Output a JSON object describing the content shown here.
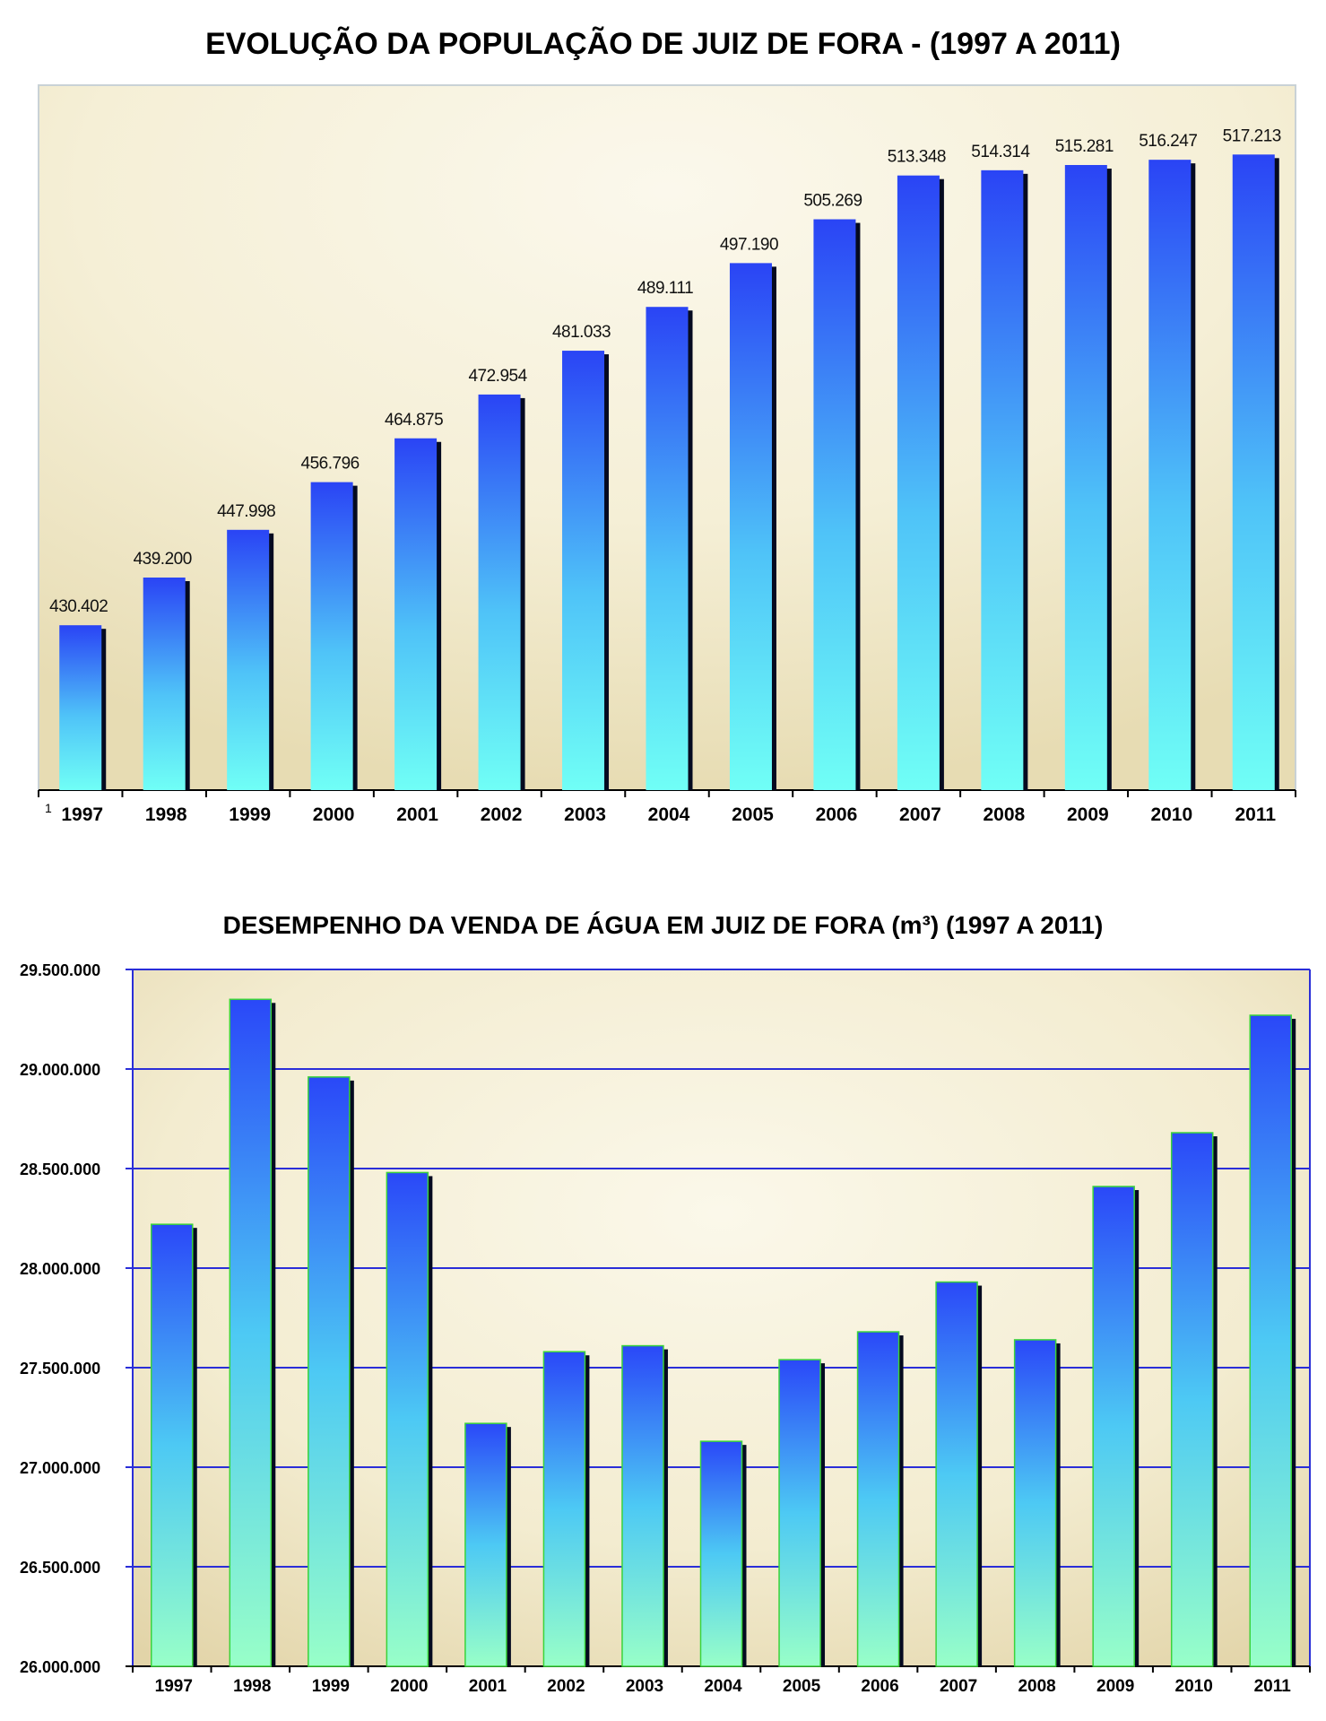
{
  "chart_data": [
    {
      "type": "bar",
      "title": "EVOLUÇÃO DA POPULAÇÃO DE JUIZ DE FORA - (1997 A 2011)",
      "categories": [
        "1997",
        "1998",
        "1999",
        "2000",
        "2001",
        "2002",
        "2003",
        "2004",
        "2005",
        "2006",
        "2007",
        "2008",
        "2009",
        "2010",
        "2011"
      ],
      "values": [
        430402,
        439200,
        447998,
        456796,
        464875,
        472954,
        481033,
        489111,
        497190,
        505269,
        513348,
        514314,
        515281,
        516247,
        517213
      ],
      "value_labels": [
        "430.402",
        "439.200",
        "447.998",
        "456.796",
        "464.875",
        "472.954",
        "481.033",
        "489.111",
        "497.190",
        "505.269",
        "513.348",
        "514.314",
        "515.281",
        "516.247",
        "517.213"
      ],
      "footnote_marker": "1",
      "ylim": [
        400000,
        530000
      ],
      "grid": false,
      "colors": {
        "bar_top": "#2a44f5",
        "bar_bottom": "#70fff6",
        "bar_shadow": "#050a20",
        "background_dark": "#e7dcb3",
        "background_light": "#fbf8ec"
      }
    },
    {
      "type": "bar",
      "title": "DESEMPENHO DA VENDA DE ÁGUA EM JUIZ DE FORA (m³) (1997 A 2011)",
      "categories": [
        "1997",
        "1998",
        "1999",
        "2000",
        "2001",
        "2002",
        "2003",
        "2004",
        "2005",
        "2006",
        "2007",
        "2008",
        "2009",
        "2010",
        "2011"
      ],
      "values": [
        28220000,
        29350000,
        28960000,
        28480000,
        27220000,
        27580000,
        27610000,
        27130000,
        27540000,
        27680000,
        27930000,
        27640000,
        28410000,
        28680000,
        29270000
      ],
      "yticks": [
        "26.000.000",
        "26.500.000",
        "27.000.000",
        "27.500.000",
        "28.000.000",
        "28.500.000",
        "29.000.000",
        "29.500.000"
      ],
      "ytick_values": [
        26000000,
        26500000,
        27000000,
        27500000,
        28000000,
        28500000,
        29000000,
        29500000
      ],
      "ylim": [
        26000000,
        29500000
      ],
      "grid": true,
      "colors": {
        "bar_top": "#2a48f8",
        "bar_bottom": "#98ffc8",
        "bar_shadow": "#050a20",
        "bar_outline": "#3bd33b",
        "gridline": "#2a2ed8"
      }
    }
  ]
}
